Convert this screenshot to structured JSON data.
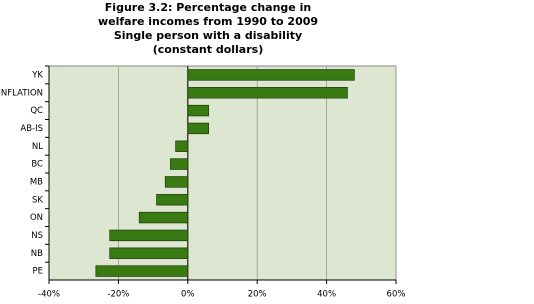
{
  "chart_data": {
    "type": "barh",
    "title": [
      "Figure 3.2: Percentage change in",
      "welfare incomes from 1990 to 2009",
      "Single person with a disability",
      "(constant dollars)"
    ],
    "categories": [
      "YK",
      "INFLATION",
      "QC",
      "AB-IS",
      "NL",
      "BC",
      "MB",
      "SK",
      "ON",
      "NS",
      "NB",
      "PE"
    ],
    "values": [
      48,
      46,
      6,
      6,
      -3.5,
      -5,
      -6.5,
      -9,
      -14,
      -22.5,
      -22.5,
      -26.5
    ],
    "color": "#3a7a12",
    "xlim": [
      -40,
      60
    ],
    "xticks": [
      {
        "value": -40,
        "label": "-40%"
      },
      {
        "value": -20,
        "label": "-20%"
      },
      {
        "value": 0,
        "label": "0%"
      },
      {
        "value": 20,
        "label": "20%"
      },
      {
        "value": 40,
        "label": "40%"
      },
      {
        "value": 60,
        "label": "60%"
      }
    ],
    "grid": true
  }
}
